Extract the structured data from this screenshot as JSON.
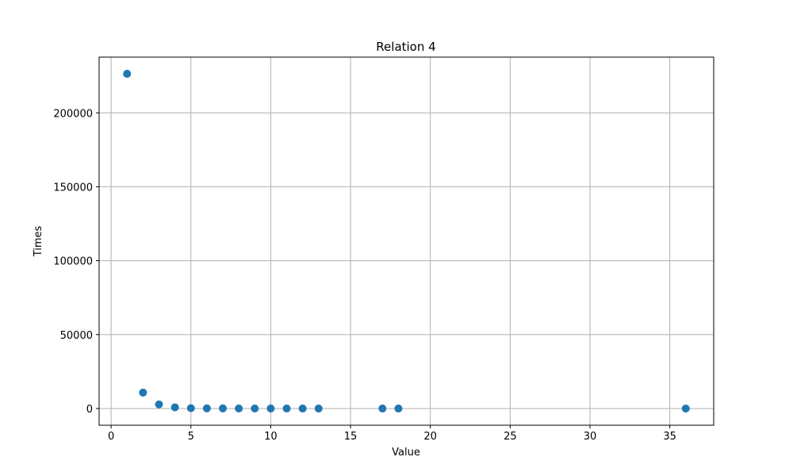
{
  "chart_data": {
    "type": "scatter",
    "title": "Relation 4",
    "xlabel": "Value",
    "ylabel": "Times",
    "xlim": [
      -0.75,
      37.75
    ],
    "ylim": [
      -11300,
      237700
    ],
    "xticks": [
      0,
      5,
      10,
      15,
      20,
      25,
      30,
      35
    ],
    "yticks": [
      0,
      50000,
      100000,
      150000,
      200000
    ],
    "grid": true,
    "marker_color": "#1f77b4",
    "x": [
      1,
      2,
      3,
      4,
      5,
      6,
      7,
      8,
      9,
      10,
      11,
      12,
      13,
      17,
      18,
      36
    ],
    "y": [
      226400,
      10800,
      2800,
      800,
      250,
      120,
      80,
      50,
      40,
      30,
      20,
      15,
      10,
      5,
      5,
      2
    ]
  }
}
